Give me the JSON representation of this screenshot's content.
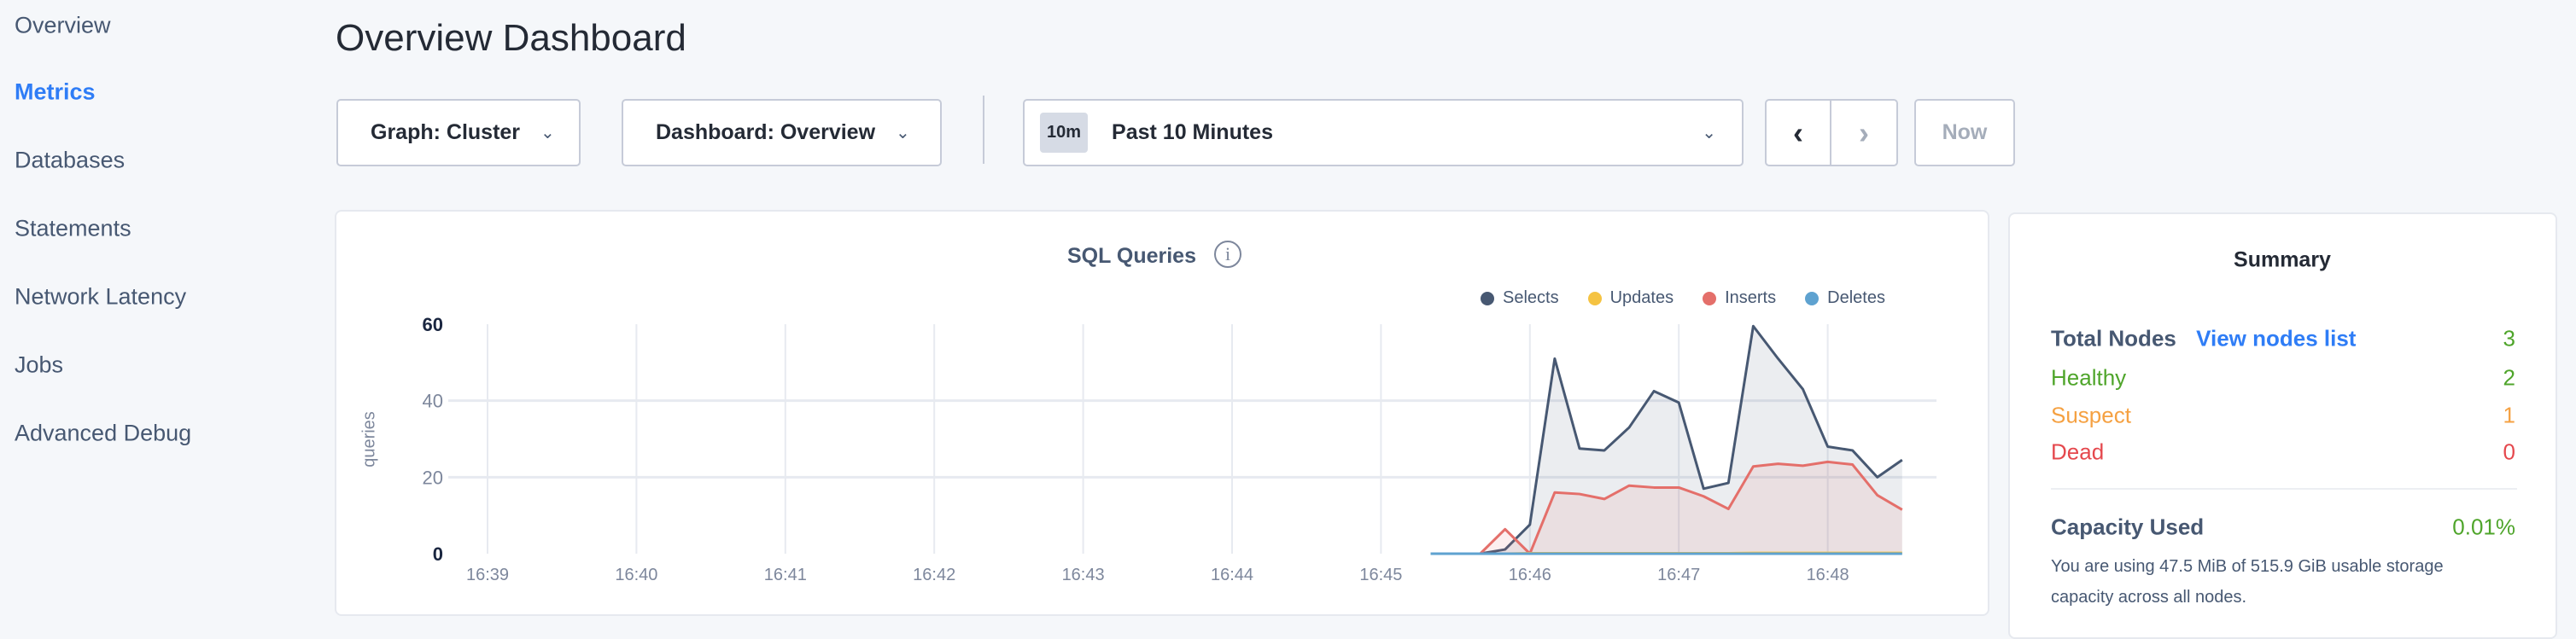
{
  "sidebar": {
    "items": [
      {
        "label": "Overview"
      },
      {
        "label": "Metrics",
        "active": true
      },
      {
        "label": "Databases"
      },
      {
        "label": "Statements"
      },
      {
        "label": "Network Latency"
      },
      {
        "label": "Jobs"
      },
      {
        "label": "Advanced Debug"
      }
    ]
  },
  "header": {
    "title": "Overview Dashboard"
  },
  "toolbar": {
    "graph_label": "Graph: Cluster",
    "dashboard_label": "Dashboard: Overview",
    "time_badge": "10m",
    "time_label": "Past 10 Minutes",
    "prev_icon": "chevron-left-icon",
    "next_icon": "chevron-right-icon",
    "now_label": "Now"
  },
  "chart": {
    "title": "SQL Queries",
    "info_icon": "info-icon"
  },
  "chart_data": {
    "type": "area",
    "title": "SQL Queries",
    "ylabel": "queries",
    "xlabel": "",
    "ylim": [
      0,
      60
    ],
    "yticks": [
      0,
      20,
      40,
      60
    ],
    "xlim": [
      "16:39",
      "16:48:30"
    ],
    "xticks": [
      "16:39",
      "16:40",
      "16:41",
      "16:42",
      "16:43",
      "16:44",
      "16:45",
      "16:46",
      "16:47",
      "16:48"
    ],
    "grid": true,
    "legend": "top-right",
    "x": [
      "16:45:20",
      "16:45:30",
      "16:45:40",
      "16:45:50",
      "16:46:00",
      "16:46:10",
      "16:46:20",
      "16:46:30",
      "16:46:40",
      "16:46:50",
      "16:47:00",
      "16:47:10",
      "16:47:20",
      "16:47:30",
      "16:47:40",
      "16:47:50",
      "16:48:00",
      "16:48:10",
      "16:48:20",
      "16:48:30"
    ],
    "series": [
      {
        "name": "Selects",
        "color": "#475872",
        "values": [
          0,
          0,
          0,
          1.1,
          7.6,
          51,
          27.5,
          27,
          33,
          42.5,
          39.5,
          17,
          18.5,
          59.5,
          51,
          43,
          28,
          27,
          20,
          24.5
        ]
      },
      {
        "name": "Updates",
        "color": "#f5c342",
        "values": [
          0,
          0,
          0,
          0,
          0.1,
          0.1,
          0.1,
          0.1,
          0.1,
          0.1,
          0.1,
          0.1,
          0.1,
          0.2,
          0.2,
          0.2,
          0.2,
          0.2,
          0.2,
          0.2
        ]
      },
      {
        "name": "Inserts",
        "color": "#e46f6a",
        "values": [
          0,
          0,
          0,
          6.4,
          0,
          16,
          15.6,
          14.3,
          17.8,
          17.3,
          17.3,
          15,
          11.7,
          22.8,
          23.5,
          23,
          24,
          23.3,
          15.3,
          11.5
        ]
      },
      {
        "name": "Deletes",
        "color": "#5ea2d0",
        "values": [
          0,
          0,
          0,
          0,
          0,
          0,
          0,
          0,
          0,
          0,
          0,
          0,
          0,
          0,
          0,
          0,
          0,
          0,
          0,
          0
        ]
      }
    ]
  },
  "summary": {
    "title": "Summary",
    "total_label": "Total Nodes",
    "view_link": "View nodes list",
    "total": "3",
    "healthy_label": "Healthy",
    "healthy": "2",
    "suspect_label": "Suspect",
    "suspect": "1",
    "dead_label": "Dead",
    "dead": "0",
    "capacity_label": "Capacity Used",
    "capacity": "0.01%",
    "capacity_text_1": "You are using 47.5 MiB of 515.9 GiB usable storage",
    "capacity_text_2": "capacity across all nodes.",
    "colors": {
      "link": "#2f7df6",
      "healthy": "#4fa52b",
      "suspect": "#f5a142",
      "dead": "#e5484d"
    }
  }
}
